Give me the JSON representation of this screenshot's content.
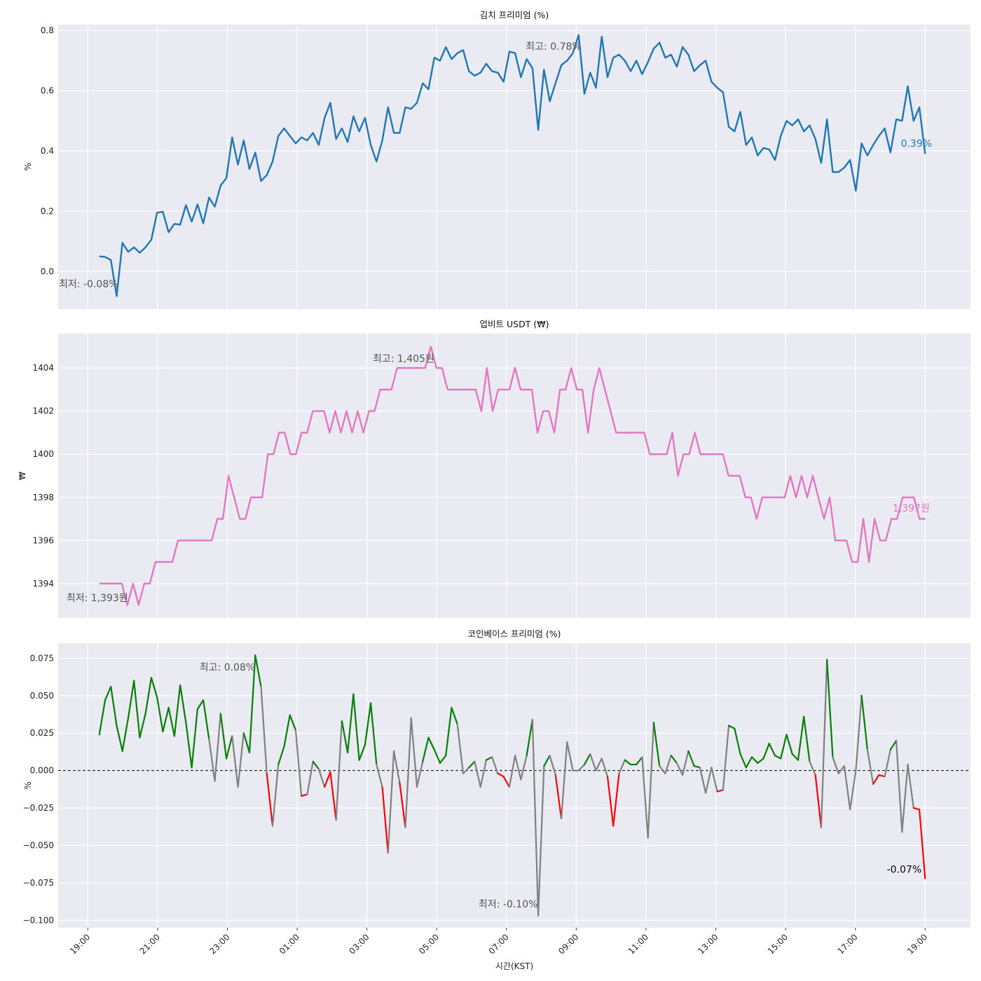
{
  "chart_data": [
    {
      "type": "line",
      "title": "김치 프리미엄 (%)",
      "ylabel": "%",
      "xlabel": "",
      "ylim": [
        -0.125,
        0.82
      ],
      "yticks": [
        0.0,
        0.2,
        0.4,
        0.6,
        0.8
      ],
      "ytick_labels": [
        "0.0",
        "0.2",
        "0.4",
        "0.6",
        "0.8"
      ],
      "grid": true,
      "color": "#1f77b4",
      "series": [
        {
          "values": [
            0.05,
            0.048,
            0.038,
            -0.082,
            0.095,
            0.065,
            0.08,
            0.062,
            0.08,
            0.105,
            0.195,
            0.198,
            0.13,
            0.158,
            0.155,
            0.22,
            0.165,
            0.222,
            0.16,
            0.245,
            0.215,
            0.285,
            0.31,
            0.445,
            0.355,
            0.435,
            0.34,
            0.395,
            0.3,
            0.32,
            0.365,
            0.45,
            0.475,
            0.45,
            0.425,
            0.445,
            0.435,
            0.46,
            0.42,
            0.51,
            0.56,
            0.44,
            0.475,
            0.43,
            0.515,
            0.465,
            0.51,
            0.42,
            0.365,
            0.435,
            0.545,
            0.46,
            0.46,
            0.545,
            0.54,
            0.56,
            0.625,
            0.605,
            0.71,
            0.7,
            0.745,
            0.705,
            0.725,
            0.735,
            0.665,
            0.65,
            0.66,
            0.69,
            0.665,
            0.66,
            0.63,
            0.73,
            0.725,
            0.645,
            0.705,
            0.675,
            0.47,
            0.67,
            0.565,
            0.625,
            0.685,
            0.7,
            0.725,
            0.785,
            0.59,
            0.66,
            0.61,
            0.78,
            0.645,
            0.71,
            0.72,
            0.7,
            0.665,
            0.7,
            0.655,
            0.695,
            0.74,
            0.76,
            0.71,
            0.72,
            0.68,
            0.745,
            0.72,
            0.665,
            0.685,
            0.7,
            0.63,
            0.61,
            0.595,
            0.48,
            0.465,
            0.53,
            0.42,
            0.445,
            0.385,
            0.41,
            0.405,
            0.37,
            0.45,
            0.5,
            0.485,
            0.505,
            0.465,
            0.485,
            0.44,
            0.36,
            0.505,
            0.33,
            0.33,
            0.345,
            0.37,
            0.268,
            0.425,
            0.385,
            0.42,
            0.45,
            0.475,
            0.395,
            0.505,
            0.5,
            0.615,
            0.5,
            0.545,
            0.39
          ]
        }
      ],
      "annotations": [
        {
          "text": "최저: -0.08%",
          "x_hour": 0.02,
          "y": -0.041,
          "color": "#555555"
        },
        {
          "text": "최고: 0.78%",
          "x_hour": 13.35,
          "y": 0.748,
          "color": "#555555"
        },
        {
          "text": "0.39%",
          "x_hour": 23.75,
          "y": 0.425,
          "color": "#1f77b4"
        }
      ]
    },
    {
      "type": "line",
      "title": "업비트 USDT (₩)",
      "ylabel": "₩",
      "xlabel": "",
      "ylim": [
        1392.4,
        1405.6
      ],
      "yticks": [
        1394,
        1396,
        1398,
        1400,
        1402,
        1404
      ],
      "ytick_labels": [
        "1394",
        "1396",
        "1398",
        "1400",
        "1402",
        "1404"
      ],
      "grid": true,
      "color": "#e377c2",
      "series": [
        {
          "values": [
            1394,
            1394,
            1394,
            1394,
            1394,
            1393,
            1394,
            1393,
            1394,
            1394,
            1395,
            1395,
            1395,
            1395,
            1396,
            1396,
            1396,
            1396,
            1396,
            1396,
            1396,
            1397,
            1397,
            1399,
            1398,
            1397,
            1397,
            1398,
            1398,
            1398,
            1400,
            1400,
            1401,
            1401,
            1400,
            1400,
            1401,
            1401,
            1402,
            1402,
            1402,
            1401,
            1402,
            1401,
            1402,
            1401,
            1402,
            1401,
            1402,
            1402,
            1403,
            1403,
            1403,
            1404,
            1404,
            1404,
            1404,
            1404,
            1404,
            1405,
            1404,
            1404,
            1403,
            1403,
            1403,
            1403,
            1403,
            1403,
            1402,
            1404,
            1402,
            1403,
            1403,
            1403,
            1404,
            1403,
            1403,
            1403,
            1401,
            1402,
            1402,
            1401,
            1403,
            1403,
            1404,
            1403,
            1403,
            1401,
            1403,
            1404,
            1403,
            1402,
            1401,
            1401,
            1401,
            1401,
            1401,
            1401,
            1400,
            1400,
            1400,
            1400,
            1401,
            1399,
            1400,
            1400,
            1401,
            1400,
            1400,
            1400,
            1400,
            1400,
            1399,
            1399,
            1399,
            1398,
            1398,
            1397,
            1398,
            1398,
            1398,
            1398,
            1398,
            1399,
            1398,
            1399,
            1398,
            1399,
            1398,
            1397,
            1398,
            1396,
            1396,
            1396,
            1395,
            1395,
            1397,
            1395,
            1397,
            1396,
            1396,
            1397,
            1397,
            1398,
            1398,
            1398,
            1397,
            1397
          ]
        }
      ],
      "annotations": [
        {
          "text": "최저: 1,393원",
          "x_hour": 0.27,
          "y": 1393.35,
          "color": "#555555"
        },
        {
          "text": "최고: 1,405원",
          "x_hour": 9.05,
          "y": 1404.45,
          "color": "#555555"
        },
        {
          "text": "1,397원",
          "x_hour": 23.6,
          "y": 1397.5,
          "color": "#e377c2"
        }
      ]
    },
    {
      "type": "line",
      "title": "코인베이스 프리미엄 (%)",
      "ylabel": "%",
      "xlabel": "시간(KST)",
      "ylim": [
        -0.105,
        0.085
      ],
      "yticks": [
        -0.1,
        -0.075,
        -0.05,
        -0.025,
        0.0,
        0.025,
        0.05,
        0.075
      ],
      "ytick_labels": [
        "−0.100",
        "−0.075",
        "−0.050",
        "−0.025",
        "0.000",
        "0.025",
        "0.050",
        "0.075"
      ],
      "grid": true,
      "zero_line": true,
      "colors": {
        "up": "#008000",
        "down": "#ff0000",
        "flat": "#808080"
      },
      "series": [
        {
          "values": [
            0.024,
            0.047,
            0.056,
            0.03,
            0.013,
            0.035,
            0.06,
            0.022,
            0.038,
            0.062,
            0.049,
            0.026,
            0.042,
            0.023,
            0.057,
            0.032,
            0.002,
            0.041,
            0.047,
            0.021,
            -0.007,
            0.038,
            0.008,
            0.023,
            -0.011,
            0.025,
            0.012,
            0.077,
            0.056,
            -0.002,
            -0.037,
            0.004,
            0.016,
            0.037,
            0.027,
            -0.017,
            -0.016,
            0.006,
            0.001,
            -0.011,
            -0.001,
            -0.033,
            0.033,
            0.012,
            0.051,
            0.007,
            0.017,
            0.045,
            0.004,
            -0.011,
            -0.055,
            0.013,
            -0.008,
            -0.038,
            0.035,
            -0.011,
            0.006,
            0.022,
            0.014,
            0.005,
            0.01,
            0.042,
            0.031,
            -0.002,
            0.002,
            0.006,
            -0.011,
            0.007,
            0.009,
            -0.002,
            -0.004,
            -0.011,
            0.01,
            -0.006,
            0.01,
            0.034,
            -0.097,
            0.003,
            0.01,
            -0.003,
            -0.032,
            0.019,
            0.0,
            0.0,
            0.004,
            0.011,
            0.0,
            0.008,
            -0.004,
            -0.037,
            -0.002,
            0.007,
            0.004,
            0.004,
            0.009,
            -0.045,
            0.032,
            0.003,
            -0.002,
            0.01,
            0.005,
            -0.003,
            0.013,
            0.003,
            0.002,
            -0.015,
            0.002,
            -0.014,
            -0.013,
            0.03,
            0.028,
            0.011,
            0.002,
            0.009,
            0.005,
            0.008,
            0.018,
            0.01,
            0.008,
            0.024,
            0.011,
            0.007,
            0.036,
            0.006,
            -0.003,
            -0.038,
            0.074,
            0.009,
            -0.002,
            0.003,
            -0.026,
            0.0,
            0.05,
            0.014,
            -0.009,
            -0.003,
            -0.004,
            0.014,
            0.02,
            -0.041,
            0.004,
            -0.025,
            -0.026,
            -0.072
          ]
        }
      ],
      "annotations": [
        {
          "text": "최고: 0.08%",
          "x_hour": 4.0,
          "y": 0.069,
          "color": "#555555"
        },
        {
          "text": "최저: -0.10%",
          "x_hour": 12.05,
          "y": -0.089,
          "color": "#555555"
        },
        {
          "text": "-0.07%",
          "x_hour": 23.4,
          "y": -0.066,
          "color": "#000000"
        }
      ]
    }
  ],
  "x_axis": {
    "tick_labels": [
      "19:00",
      "21:00",
      "23:00",
      "01:00",
      "03:00",
      "05:00",
      "07:00",
      "09:00",
      "11:00",
      "13:00",
      "15:00",
      "17:00",
      "19:00"
    ],
    "xlabel": "시간(KST)",
    "range_hours": [
      -0.85,
      25.3
    ],
    "series_start_hour": 0.33,
    "series_end_hour": 24.0
  }
}
